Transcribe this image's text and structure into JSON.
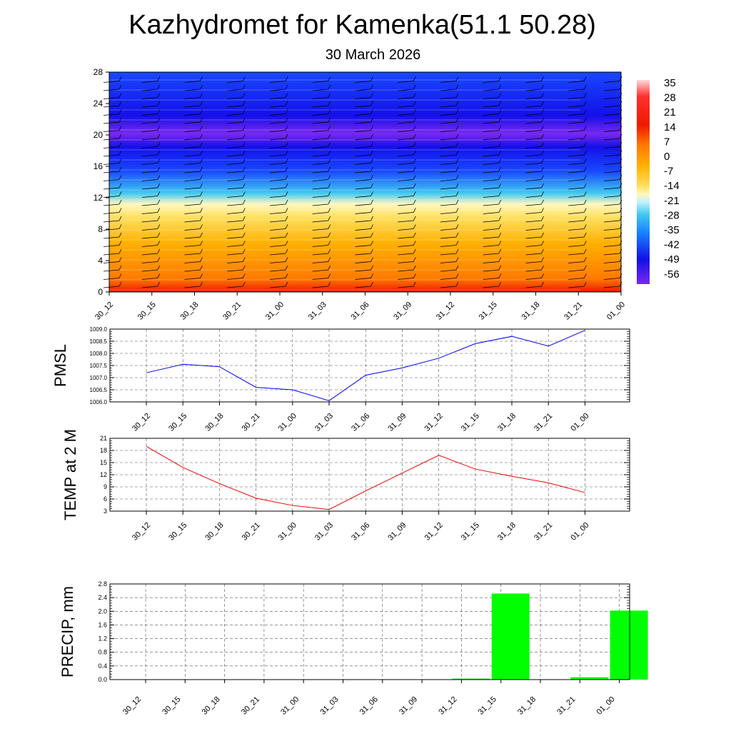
{
  "title": "Kazhydromet for Kamenka(51.1 50.28)",
  "subtitle": "30 March 2026",
  "chart_data": [
    {
      "type": "heatmap",
      "name": "vertical-profile",
      "description_label": "",
      "x_categories": [
        "30_12",
        "30_15",
        "30_18",
        "30_21",
        "31_00",
        "31_03",
        "31_06",
        "31_09",
        "31_12",
        "31_15",
        "31_18",
        "31_21",
        "01_00"
      ],
      "y_ticks": [
        0,
        4,
        8,
        12,
        16,
        20,
        24,
        28
      ],
      "ylim": [
        0,
        28
      ],
      "colorbar_labels": [
        "35",
        "28",
        "21",
        "14",
        "7",
        "0",
        "-7",
        "-14",
        "-21",
        "-28",
        "-35",
        "-42",
        "-49",
        "-56"
      ],
      "colors": {
        "hot": "#ee1a00",
        "orange": "#ff7a00",
        "amber": "#ffb000",
        "yellow": "#ffe060",
        "cream": "#fff8c0",
        "cyan": "#40c8f0",
        "blue": "#1848ff",
        "violet": "#7a28f0",
        "navy": "#1410e8"
      }
    },
    {
      "type": "line",
      "name": "pmsl",
      "ylabel": "PMSL",
      "categories": [
        "30_12",
        "30_15",
        "30_18",
        "30_21",
        "31_00",
        "31_03",
        "31_06",
        "31_09",
        "31_12",
        "31_15",
        "31_18",
        "31_21",
        "01_00"
      ],
      "values": [
        1007.2,
        1007.55,
        1007.45,
        1006.6,
        1006.5,
        1006.05,
        1007.1,
        1007.4,
        1007.8,
        1008.4,
        1008.7,
        1008.3,
        1008.95
      ],
      "ylim": [
        1006.0,
        1009.0
      ],
      "yticks": [
        "1006.0",
        "1006.5",
        "1007.0",
        "1007.5",
        "1008.0",
        "1008.5",
        "1009.0"
      ],
      "color": "#0000ee"
    },
    {
      "type": "line",
      "name": "temp2m",
      "ylabel": "TEMP at 2 M",
      "categories": [
        "30_12",
        "30_15",
        "30_18",
        "30_21",
        "31_00",
        "31_03",
        "31_06",
        "31_09",
        "31_12",
        "31_15",
        "31_18",
        "31_21",
        "01_00"
      ],
      "values": [
        19.0,
        13.8,
        9.8,
        6.2,
        4.4,
        3.4,
        8.0,
        12.4,
        16.8,
        13.4,
        11.6,
        10.0,
        7.6
      ],
      "ylim": [
        3,
        21
      ],
      "yticks": [
        "3",
        "6",
        "9",
        "12",
        "15",
        "18",
        "21"
      ],
      "color": "#ee0000"
    },
    {
      "type": "bar",
      "name": "precip",
      "ylabel": "PRECIP, mm",
      "categories": [
        "30_12",
        "30_15",
        "30_18",
        "30_21",
        "31_00",
        "31_03",
        "31_06",
        "31_09",
        "31_12",
        "31_15",
        "31_18",
        "31_21",
        "01_00"
      ],
      "values": [
        0,
        0,
        0,
        0,
        0,
        0,
        0,
        0,
        0.03,
        2.52,
        0,
        0.07,
        2.02
      ],
      "ylim": [
        0,
        2.8
      ],
      "yticks": [
        "0.0",
        "0.4",
        "0.8",
        "1.2",
        "1.6",
        "2.0",
        "2.4",
        "2.8"
      ],
      "color": "#00ff00"
    }
  ]
}
